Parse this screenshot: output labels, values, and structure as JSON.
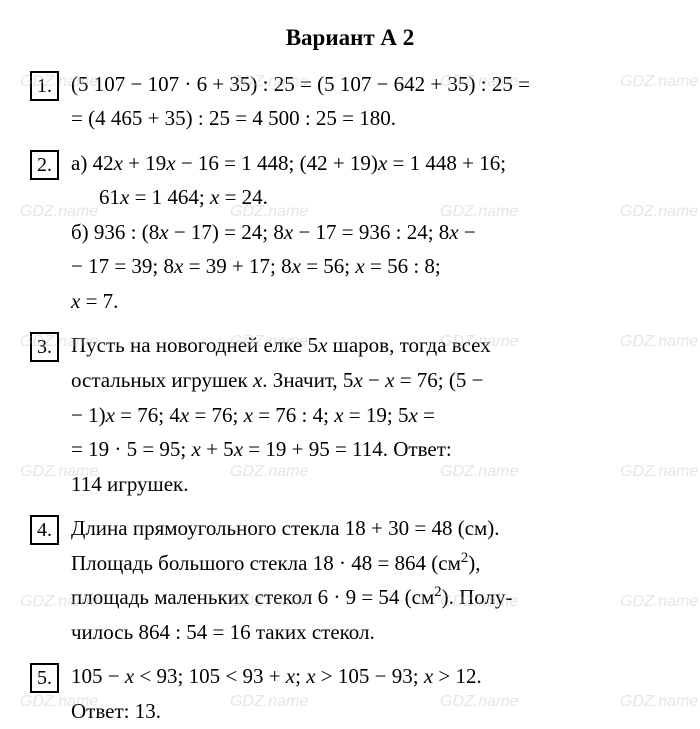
{
  "title": "Вариант А 2",
  "problems": {
    "p1": {
      "num": "1.",
      "line1": "(5 107 − 107 · 6 + 35) : 25 = (5 107 − 642 + 35) : 25 =",
      "line2": "= (4 465 + 35) : 25 = 4 500 : 25 = 180."
    },
    "p2": {
      "num": "2.",
      "a_line1": "а) 42x + 19x − 16 = 1 448; (42 + 19)x = 1 448 + 16;",
      "a_line2": "61x = 1 464; x = 24.",
      "b_line1": "б) 936 : (8x − 17) = 24; 8x − 17 = 936 : 24; 8x −",
      "b_line2": "− 17 = 39; 8x = 39 + 17; 8x = 56; x = 56 : 8;",
      "b_line3": "x = 7."
    },
    "p3": {
      "num": "3.",
      "line1": "Пусть на новогодней елке 5x шаров, тогда всех",
      "line2": "остальных игрушек x. Значит, 5x − x = 76; (5 −",
      "line3": "− 1)x = 76; 4x = 76; x = 76 : 4; x = 19; 5x =",
      "line4": "= 19 · 5 = 95; x + 5x = 19 + 95 = 114. Ответ:",
      "line5": "114 игрушек."
    },
    "p4": {
      "num": "4.",
      "line1": "Длина прямоугольного стекла 18 + 30 = 48 (см).",
      "line2a": "Площадь большого стекла 18 · 48 = 864 (см",
      "line2b": "),",
      "line3a": "площадь маленьких стекол 6 · 9 = 54 (см",
      "line3b": "). Полу-",
      "line4": "чилось 864 : 54 = 16 таких стекол."
    },
    "p5": {
      "num": "5.",
      "line1": "105 − x < 93; 105 < 93 + x; x > 105 − 93; x > 12.",
      "line2": "Ответ: 13."
    }
  },
  "watermark_text": "GDZ.name",
  "styling": {
    "background_color": "#ffffff",
    "text_color": "#000000",
    "font_family": "Times New Roman",
    "font_size": 21,
    "title_font_size": 23,
    "border_color": "#000000",
    "watermark_color": "rgba(180,180,180,0.35)"
  }
}
